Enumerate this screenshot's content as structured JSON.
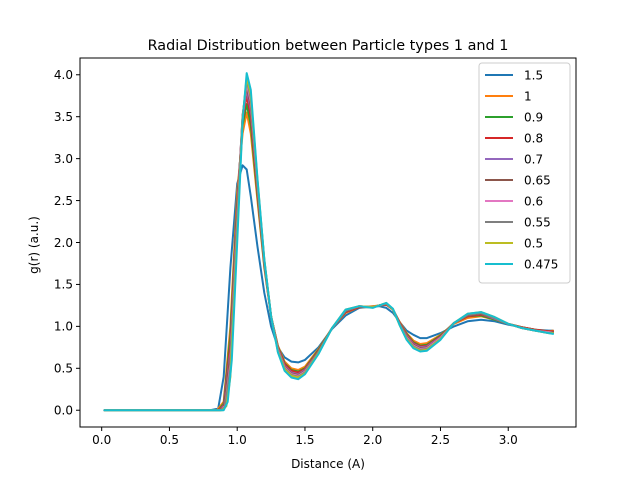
{
  "chart_data": {
    "type": "line",
    "title": "Radial Distribution between Particle types 1 and 1",
    "xlabel": "Distance (A)",
    "ylabel": "g(r) (a.u.)",
    "xlim": [
      -0.16,
      3.5
    ],
    "ylim": [
      -0.2,
      4.2
    ],
    "xticks": [
      0.0,
      0.5,
      1.0,
      1.5,
      2.0,
      2.5,
      3.0
    ],
    "xtick_labels": [
      "0.0",
      "0.5",
      "1.0",
      "1.5",
      "2.0",
      "2.5",
      "3.0"
    ],
    "yticks": [
      0.0,
      0.5,
      1.0,
      1.5,
      2.0,
      2.5,
      3.0,
      3.5,
      4.0
    ],
    "ytick_labels": [
      "0.0",
      "0.5",
      "1.0",
      "1.5",
      "2.0",
      "2.5",
      "3.0",
      "3.5",
      "4.0"
    ],
    "grid": false,
    "legend_position": "top-right",
    "colors": [
      "#1f77b4",
      "#ff7f0e",
      "#2ca02c",
      "#d62728",
      "#9467bd",
      "#8c564b",
      "#e377c2",
      "#7f7f7f",
      "#bcbd22",
      "#17becf"
    ],
    "series": [
      {
        "name": "1.5",
        "x": [
          0.02,
          0.5,
          0.8,
          0.86,
          0.9,
          0.95,
          1.0,
          1.04,
          1.07,
          1.1,
          1.15,
          1.2,
          1.25,
          1.3,
          1.35,
          1.4,
          1.45,
          1.5,
          1.6,
          1.7,
          1.8,
          1.9,
          2.0,
          2.05,
          2.1,
          2.15,
          2.2,
          2.25,
          2.3,
          2.35,
          2.4,
          2.5,
          2.6,
          2.7,
          2.8,
          2.9,
          3.0,
          3.1,
          3.2,
          3.3,
          3.33
        ],
        "y": [
          0,
          0,
          0,
          0.02,
          0.4,
          1.7,
          2.7,
          2.92,
          2.87,
          2.55,
          1.95,
          1.4,
          1.0,
          0.75,
          0.63,
          0.58,
          0.57,
          0.6,
          0.75,
          0.97,
          1.13,
          1.22,
          1.24,
          1.24,
          1.22,
          1.16,
          1.05,
          0.95,
          0.9,
          0.86,
          0.86,
          0.92,
          1.0,
          1.06,
          1.08,
          1.06,
          1.02,
          0.99,
          0.96,
          0.95,
          0.95
        ]
      },
      {
        "name": "1",
        "x": [
          0.02,
          0.5,
          0.85,
          0.9,
          0.95,
          1.0,
          1.04,
          1.07,
          1.1,
          1.15,
          1.2,
          1.25,
          1.3,
          1.35,
          1.4,
          1.45,
          1.5,
          1.6,
          1.7,
          1.8,
          1.9,
          2.0,
          2.05,
          2.1,
          2.15,
          2.2,
          2.25,
          2.3,
          2.35,
          2.4,
          2.5,
          2.6,
          2.7,
          2.8,
          2.9,
          3.0,
          3.1,
          3.2,
          3.3,
          3.33
        ],
        "y": [
          0,
          0,
          0,
          0.1,
          1.0,
          2.6,
          3.3,
          3.55,
          3.3,
          2.5,
          1.7,
          1.12,
          0.77,
          0.58,
          0.5,
          0.48,
          0.52,
          0.73,
          0.98,
          1.16,
          1.23,
          1.24,
          1.25,
          1.26,
          1.2,
          1.05,
          0.92,
          0.83,
          0.79,
          0.8,
          0.9,
          1.03,
          1.1,
          1.12,
          1.08,
          1.03,
          0.99,
          0.96,
          0.94,
          0.95
        ]
      },
      {
        "name": "0.9",
        "x": [
          0.02,
          0.5,
          0.86,
          0.9,
          0.95,
          1.0,
          1.04,
          1.07,
          1.1,
          1.15,
          1.2,
          1.25,
          1.3,
          1.35,
          1.4,
          1.45,
          1.5,
          1.6,
          1.7,
          1.8,
          1.9,
          2.0,
          2.05,
          2.1,
          2.15,
          2.2,
          2.25,
          2.3,
          2.35,
          2.4,
          2.5,
          2.6,
          2.7,
          2.8,
          2.9,
          3.0,
          3.1,
          3.2,
          3.3,
          3.33
        ],
        "y": [
          0,
          0,
          0,
          0.08,
          0.9,
          2.5,
          3.4,
          3.65,
          3.4,
          2.55,
          1.72,
          1.12,
          0.76,
          0.56,
          0.48,
          0.46,
          0.5,
          0.72,
          0.98,
          1.17,
          1.23,
          1.23,
          1.25,
          1.26,
          1.2,
          1.04,
          0.91,
          0.81,
          0.77,
          0.78,
          0.89,
          1.04,
          1.12,
          1.13,
          1.08,
          1.03,
          0.99,
          0.96,
          0.94,
          0.94
        ]
      },
      {
        "name": "0.8",
        "x": [
          0.02,
          0.5,
          0.86,
          0.9,
          0.95,
          1.0,
          1.04,
          1.07,
          1.1,
          1.15,
          1.2,
          1.25,
          1.3,
          1.35,
          1.4,
          1.45,
          1.5,
          1.6,
          1.7,
          1.8,
          1.9,
          2.0,
          2.05,
          2.1,
          2.15,
          2.2,
          2.25,
          2.3,
          2.35,
          2.4,
          2.5,
          2.6,
          2.7,
          2.8,
          2.9,
          3.0,
          3.1,
          3.2,
          3.3,
          3.33
        ],
        "y": [
          0,
          0,
          0,
          0.06,
          0.8,
          2.45,
          3.45,
          3.75,
          3.5,
          2.6,
          1.74,
          1.12,
          0.75,
          0.55,
          0.47,
          0.45,
          0.49,
          0.71,
          0.98,
          1.17,
          1.23,
          1.23,
          1.25,
          1.26,
          1.2,
          1.04,
          0.9,
          0.8,
          0.76,
          0.77,
          0.88,
          1.04,
          1.12,
          1.14,
          1.09,
          1.03,
          0.99,
          0.96,
          0.94,
          0.94
        ]
      },
      {
        "name": "0.7",
        "x": [
          0.02,
          0.5,
          0.87,
          0.9,
          0.95,
          1.0,
          1.04,
          1.07,
          1.1,
          1.15,
          1.2,
          1.25,
          1.3,
          1.35,
          1.4,
          1.45,
          1.5,
          1.6,
          1.7,
          1.8,
          1.9,
          2.0,
          2.05,
          2.1,
          2.15,
          2.2,
          2.25,
          2.3,
          2.35,
          2.4,
          2.5,
          2.6,
          2.7,
          2.8,
          2.9,
          3.0,
          3.1,
          3.2,
          3.3,
          3.33
        ],
        "y": [
          0,
          0,
          0,
          0.05,
          0.7,
          2.4,
          3.5,
          3.82,
          3.58,
          2.65,
          1.76,
          1.12,
          0.74,
          0.53,
          0.45,
          0.43,
          0.48,
          0.7,
          0.98,
          1.18,
          1.24,
          1.23,
          1.25,
          1.27,
          1.2,
          1.03,
          0.89,
          0.79,
          0.75,
          0.76,
          0.87,
          1.04,
          1.13,
          1.15,
          1.09,
          1.03,
          0.98,
          0.95,
          0.93,
          0.93
        ]
      },
      {
        "name": "0.65",
        "x": [
          0.02,
          0.5,
          0.87,
          0.9,
          0.95,
          1.0,
          1.04,
          1.07,
          1.1,
          1.15,
          1.2,
          1.25,
          1.3,
          1.35,
          1.4,
          1.45,
          1.5,
          1.6,
          1.7,
          1.8,
          1.9,
          2.0,
          2.05,
          2.1,
          2.15,
          2.2,
          2.25,
          2.3,
          2.35,
          2.4,
          2.5,
          2.6,
          2.7,
          2.8,
          2.9,
          3.0,
          3.1,
          3.2,
          3.3,
          3.33
        ],
        "y": [
          0,
          0,
          0,
          0.04,
          0.65,
          2.35,
          3.52,
          3.86,
          3.62,
          2.68,
          1.77,
          1.12,
          0.73,
          0.52,
          0.44,
          0.42,
          0.47,
          0.7,
          0.98,
          1.18,
          1.24,
          1.23,
          1.25,
          1.27,
          1.2,
          1.03,
          0.88,
          0.78,
          0.74,
          0.75,
          0.86,
          1.04,
          1.13,
          1.15,
          1.1,
          1.03,
          0.98,
          0.95,
          0.93,
          0.93
        ]
      },
      {
        "name": "0.6",
        "x": [
          0.02,
          0.5,
          0.88,
          0.91,
          0.95,
          1.0,
          1.04,
          1.07,
          1.1,
          1.15,
          1.2,
          1.25,
          1.3,
          1.35,
          1.4,
          1.45,
          1.5,
          1.6,
          1.7,
          1.8,
          1.9,
          2.0,
          2.05,
          2.1,
          2.15,
          2.2,
          2.25,
          2.3,
          2.35,
          2.4,
          2.5,
          2.6,
          2.7,
          2.8,
          2.9,
          3.0,
          3.1,
          3.2,
          3.3,
          3.33
        ],
        "y": [
          0,
          0,
          0,
          0.05,
          0.55,
          2.25,
          3.5,
          3.9,
          3.68,
          2.7,
          1.78,
          1.12,
          0.72,
          0.51,
          0.43,
          0.41,
          0.46,
          0.69,
          0.98,
          1.19,
          1.24,
          1.23,
          1.25,
          1.27,
          1.2,
          1.02,
          0.87,
          0.77,
          0.73,
          0.74,
          0.86,
          1.04,
          1.14,
          1.16,
          1.1,
          1.03,
          0.98,
          0.95,
          0.93,
          0.92
        ]
      },
      {
        "name": "0.55",
        "x": [
          0.02,
          0.5,
          0.88,
          0.91,
          0.95,
          1.0,
          1.04,
          1.07,
          1.1,
          1.15,
          1.2,
          1.25,
          1.3,
          1.35,
          1.4,
          1.45,
          1.5,
          1.6,
          1.7,
          1.8,
          1.9,
          2.0,
          2.05,
          2.1,
          2.15,
          2.2,
          2.25,
          2.3,
          2.35,
          2.4,
          2.5,
          2.6,
          2.7,
          2.8,
          2.9,
          3.0,
          3.1,
          3.2,
          3.3,
          3.33
        ],
        "y": [
          0,
          0,
          0,
          0.04,
          0.5,
          2.2,
          3.5,
          3.94,
          3.72,
          2.72,
          1.79,
          1.12,
          0.71,
          0.5,
          0.42,
          0.4,
          0.45,
          0.69,
          0.98,
          1.19,
          1.24,
          1.23,
          1.25,
          1.27,
          1.2,
          1.02,
          0.86,
          0.76,
          0.72,
          0.73,
          0.85,
          1.04,
          1.14,
          1.16,
          1.1,
          1.03,
          0.98,
          0.95,
          0.92,
          0.92
        ]
      },
      {
        "name": "0.5",
        "x": [
          0.02,
          0.5,
          0.89,
          0.92,
          0.95,
          1.0,
          1.04,
          1.07,
          1.1,
          1.15,
          1.2,
          1.25,
          1.3,
          1.35,
          1.4,
          1.45,
          1.5,
          1.6,
          1.7,
          1.8,
          1.9,
          2.0,
          2.05,
          2.1,
          2.15,
          2.2,
          2.25,
          2.3,
          2.35,
          2.4,
          2.5,
          2.6,
          2.7,
          2.8,
          2.9,
          3.0,
          3.1,
          3.2,
          3.3,
          3.33
        ],
        "y": [
          0,
          0,
          0,
          0.05,
          0.4,
          2.1,
          3.48,
          3.97,
          3.76,
          2.74,
          1.8,
          1.12,
          0.7,
          0.49,
          0.41,
          0.39,
          0.44,
          0.68,
          0.98,
          1.2,
          1.24,
          1.23,
          1.25,
          1.28,
          1.2,
          1.01,
          0.85,
          0.75,
          0.71,
          0.72,
          0.85,
          1.04,
          1.15,
          1.17,
          1.11,
          1.03,
          0.98,
          0.95,
          0.92,
          0.92
        ]
      },
      {
        "name": "0.475",
        "x": [
          0.02,
          0.5,
          0.9,
          0.93,
          0.96,
          1.0,
          1.04,
          1.07,
          1.1,
          1.15,
          1.2,
          1.25,
          1.3,
          1.35,
          1.4,
          1.45,
          1.5,
          1.6,
          1.7,
          1.8,
          1.9,
          2.0,
          2.05,
          2.1,
          2.15,
          2.2,
          2.25,
          2.3,
          2.35,
          2.4,
          2.5,
          2.6,
          2.7,
          2.8,
          2.9,
          3.0,
          3.1,
          3.2,
          3.3,
          3.33
        ],
        "y": [
          0,
          0,
          0,
          0.1,
          0.6,
          2.0,
          3.45,
          4.02,
          3.82,
          2.76,
          1.8,
          1.12,
          0.69,
          0.47,
          0.39,
          0.37,
          0.43,
          0.67,
          0.98,
          1.2,
          1.24,
          1.22,
          1.25,
          1.28,
          1.21,
          1.01,
          0.84,
          0.74,
          0.7,
          0.71,
          0.84,
          1.04,
          1.15,
          1.17,
          1.11,
          1.03,
          0.98,
          0.95,
          0.92,
          0.91
        ]
      }
    ]
  }
}
